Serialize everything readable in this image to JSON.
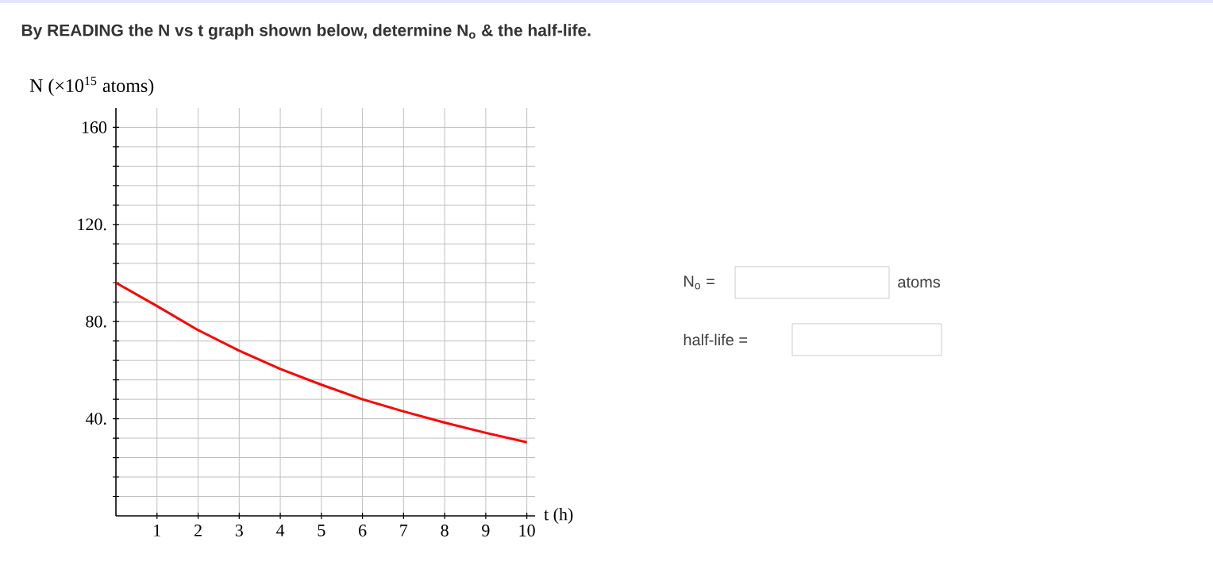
{
  "chart_data": {
    "type": "line",
    "title": "By READING the N vs t graph shown below, determine N$_{o}$ & the half-life.",
    "xlabel": "t (h)",
    "ylabel": "N (×10$^{15}$ atoms)",
    "x": [
      0,
      1,
      2,
      3,
      4,
      5,
      6,
      7,
      8,
      9,
      10
    ],
    "series": [
      {
        "color": "#ff0000",
        "values": [
          96,
          86.4,
          76.5,
          68,
          60.5,
          54,
          48,
          43,
          38.4,
          34.2,
          30.3
        ]
      }
    ],
    "xlim": [
      0,
      10.2
    ],
    "ylim": [
      0,
      168
    ],
    "xticks": [
      1,
      2,
      3,
      4,
      5,
      6,
      7,
      8,
      9,
      10
    ],
    "yticks": [
      {
        "value": 8,
        "label": null
      },
      {
        "value": 16,
        "label": null
      },
      {
        "value": 24,
        "label": null
      },
      {
        "value": 32,
        "label": null
      },
      {
        "value": 40,
        "label": "40."
      },
      {
        "value": 48,
        "label": null
      },
      {
        "value": 56,
        "label": null
      },
      {
        "value": 64,
        "label": null
      },
      {
        "value": 72,
        "label": null
      },
      {
        "value": 80,
        "label": "80."
      },
      {
        "value": 88,
        "label": null
      },
      {
        "value": 96,
        "label": null
      },
      {
        "value": 104,
        "label": null
      },
      {
        "value": 112,
        "label": null
      },
      {
        "value": 120,
        "label": "120."
      },
      {
        "value": 128,
        "label": null
      },
      {
        "value": 136,
        "label": null
      },
      {
        "value": 144,
        "label": null
      },
      {
        "value": 152,
        "label": null
      },
      {
        "value": 160,
        "label": "160"
      }
    ],
    "grid": true,
    "marker": "none",
    "line_style": "solid",
    "annotations": [
      "N$_{o}$ =",
      "atoms",
      "half-life ="
    ]
  }
}
